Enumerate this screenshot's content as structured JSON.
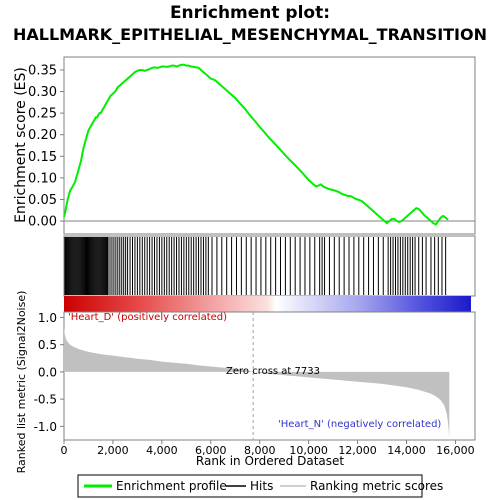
{
  "header": {
    "title_line1": "Enrichment plot:",
    "title_line2": "HALLMARK_EPITHELIAL_MESENCHYMAL_TRANSITION"
  },
  "colors": {
    "enrichment_line": "#00ee00",
    "hits": "#000000",
    "metric_fill": "#c0c0c0",
    "positive_label": "#cc0000",
    "negative_label": "#3333cc",
    "frame": "#808080",
    "zero_line": "#808080"
  },
  "chart_data": [
    {
      "type": "line",
      "ylabel": "Enrichment score (ES)",
      "xlim": [
        0,
        16800
      ],
      "ylim": [
        -0.03,
        0.38
      ],
      "yticks": [
        0.0,
        0.05,
        0.1,
        0.15,
        0.2,
        0.25,
        0.3,
        0.35
      ],
      "ytick_labels": [
        "0.00",
        "0.05",
        "0.10",
        "0.15",
        "0.20",
        "0.25",
        "0.30",
        "0.35"
      ],
      "series": [
        {
          "name": "Enrichment profile",
          "x": [
            0,
            50,
            100,
            150,
            200,
            250,
            300,
            350,
            400,
            450,
            500,
            550,
            600,
            650,
            700,
            750,
            800,
            850,
            900,
            950,
            1000,
            1050,
            1100,
            1150,
            1200,
            1250,
            1300,
            1350,
            1400,
            1450,
            1500,
            1550,
            1600,
            1650,
            1700,
            1750,
            1800,
            1900,
            2000,
            2100,
            2200,
            2300,
            2400,
            2500,
            2600,
            2700,
            2800,
            2900,
            3000,
            3100,
            3200,
            3300,
            3400,
            3500,
            3600,
            3700,
            3800,
            3900,
            4000,
            4100,
            4200,
            4300,
            4400,
            4500,
            4600,
            4700,
            4800,
            4900,
            5000,
            5100,
            5200,
            5300,
            5400,
            5500,
            5600,
            5700,
            5800,
            5900,
            6000,
            6100,
            6200,
            6300,
            6400,
            6500,
            6600,
            6800,
            7000,
            7200,
            7400,
            7600,
            7800,
            8000,
            8200,
            8400,
            8600,
            8800,
            9000,
            9200,
            9400,
            9600,
            9800,
            10000,
            10100,
            10200,
            10300,
            10400,
            10500,
            10600,
            10700,
            10800,
            10900,
            11000,
            11100,
            11200,
            11300,
            11400,
            11500,
            11600,
            11700,
            11800,
            11900,
            12000,
            12100,
            12200,
            12300,
            12400,
            12500,
            12600,
            12700,
            12800,
            12900,
            13000,
            13100,
            13200,
            13300,
            13400,
            13500,
            13600,
            13700,
            13800,
            13900,
            14000,
            14100,
            14200,
            14300,
            14400,
            14500,
            14600,
            14700,
            14800,
            14900,
            15000,
            15100,
            15200,
            15300,
            15400,
            15500,
            15600,
            15700
          ],
          "y": [
            0.01,
            0.02,
            0.035,
            0.05,
            0.06,
            0.07,
            0.075,
            0.08,
            0.085,
            0.09,
            0.1,
            0.11,
            0.12,
            0.13,
            0.14,
            0.155,
            0.17,
            0.18,
            0.19,
            0.2,
            0.21,
            0.215,
            0.22,
            0.225,
            0.23,
            0.235,
            0.24,
            0.24,
            0.245,
            0.25,
            0.25,
            0.255,
            0.26,
            0.265,
            0.27,
            0.275,
            0.28,
            0.29,
            0.295,
            0.3,
            0.31,
            0.315,
            0.32,
            0.325,
            0.33,
            0.335,
            0.34,
            0.345,
            0.348,
            0.35,
            0.35,
            0.348,
            0.35,
            0.352,
            0.355,
            0.356,
            0.355,
            0.356,
            0.358,
            0.358,
            0.357,
            0.358,
            0.36,
            0.36,
            0.358,
            0.36,
            0.362,
            0.362,
            0.36,
            0.36,
            0.358,
            0.357,
            0.356,
            0.355,
            0.35,
            0.345,
            0.34,
            0.335,
            0.33,
            0.328,
            0.325,
            0.32,
            0.315,
            0.31,
            0.305,
            0.295,
            0.285,
            0.272,
            0.26,
            0.245,
            0.232,
            0.218,
            0.205,
            0.192,
            0.18,
            0.168,
            0.155,
            0.143,
            0.132,
            0.12,
            0.108,
            0.095,
            0.09,
            0.085,
            0.08,
            0.082,
            0.085,
            0.08,
            0.077,
            0.075,
            0.073,
            0.072,
            0.07,
            0.068,
            0.065,
            0.062,
            0.06,
            0.058,
            0.058,
            0.055,
            0.052,
            0.05,
            0.048,
            0.045,
            0.04,
            0.035,
            0.03,
            0.025,
            0.02,
            0.015,
            0.01,
            0.005,
            0.0,
            -0.005,
            0.0,
            0.005,
            0.005,
            0.0,
            -0.002,
            0.0,
            0.005,
            0.01,
            0.015,
            0.02,
            0.025,
            0.03,
            0.028,
            0.022,
            0.015,
            0.01,
            0.005,
            0.0,
            -0.005,
            -0.008,
            0.0,
            0.008,
            0.012,
            0.008,
            0.003
          ]
        }
      ]
    },
    {
      "type": "bar",
      "series": [
        {
          "name": "Hits",
          "x": [
            40,
            80,
            120,
            160,
            200,
            240,
            280,
            320,
            360,
            400,
            440,
            480,
            520,
            560,
            600,
            640,
            680,
            720,
            760,
            800,
            840,
            880,
            920,
            960,
            1000,
            1040,
            1080,
            1120,
            1160,
            1200,
            1240,
            1280,
            1320,
            1360,
            1400,
            1440,
            1480,
            1520,
            1560,
            1600,
            1640,
            1680,
            1720,
            1760,
            1800,
            1880,
            1960,
            2040,
            2120,
            2200,
            2280,
            2360,
            2440,
            2520,
            2600,
            2700,
            2800,
            2900,
            3000,
            3100,
            3200,
            3300,
            3400,
            3500,
            3600,
            3700,
            3800,
            3900,
            4000,
            4100,
            4200,
            4300,
            4400,
            4500,
            4600,
            4700,
            4800,
            4900,
            5000,
            5100,
            5200,
            5300,
            5400,
            5500,
            5600,
            5700,
            5800,
            5900,
            6050,
            6250,
            6450,
            6650,
            6850,
            7050,
            7250,
            7450,
            7650,
            7850,
            8050,
            8250,
            8450,
            8650,
            8850,
            9050,
            9250,
            9450,
            9650,
            9850,
            10050,
            10250,
            10450,
            10550,
            10650,
            10850,
            11050,
            11250,
            11450,
            11650,
            11850,
            12050,
            12250,
            12450,
            12650,
            12850,
            13050,
            13250,
            13350,
            13450,
            13550,
            13650,
            13750,
            13850,
            13950,
            14050,
            14150,
            14250,
            14350,
            14500,
            14650,
            14800,
            15000,
            15150,
            15300,
            15450,
            15600
          ]
        }
      ]
    },
    {
      "type": "area",
      "ylabel": "Ranked list metric (Signal2Noise)",
      "xlabel": "Rank in Ordered Dataset",
      "xlim": [
        0,
        16800
      ],
      "ylim": [
        -1.25,
        1.1
      ],
      "yticks": [
        -1.0,
        -0.5,
        0.0,
        0.5,
        1.0
      ],
      "ytick_labels": [
        "-1.0",
        "-0.5",
        "0.0",
        "0.5",
        "1.0"
      ],
      "xticks": [
        0,
        2000,
        4000,
        6000,
        8000,
        10000,
        12000,
        14000,
        16000
      ],
      "xtick_labels": [
        "0",
        "2,000",
        "4,000",
        "6,000",
        "8,000",
        "10,000",
        "12,000",
        "14,000",
        "16,000"
      ],
      "zero_cross": 7733,
      "zero_cross_label": "Zero cross at 7733",
      "positive_label": "'Heart_D' (positively correlated)",
      "negative_label": "'Heart_N' (negatively correlated)",
      "series": [
        {
          "name": "Ranking metric scores",
          "x": [
            0,
            30,
            80,
            150,
            250,
            400,
            600,
            900,
            1200,
            1600,
            2000,
            2500,
            3000,
            3500,
            4000,
            4500,
            5000,
            5500,
            6000,
            6500,
            7000,
            7500,
            7733,
            8000,
            8500,
            9000,
            9500,
            10000,
            10500,
            11000,
            11500,
            12000,
            12500,
            13000,
            13500,
            14000,
            14500,
            14800,
            15000,
            15200,
            15400,
            15550,
            15650,
            15700,
            15750
          ],
          "y": [
            0.82,
            0.7,
            0.6,
            0.55,
            0.5,
            0.46,
            0.42,
            0.38,
            0.35,
            0.32,
            0.3,
            0.27,
            0.24,
            0.22,
            0.19,
            0.17,
            0.15,
            0.12,
            0.1,
            0.08,
            0.06,
            0.03,
            0.0,
            -0.02,
            -0.04,
            -0.06,
            -0.08,
            -0.1,
            -0.12,
            -0.14,
            -0.16,
            -0.18,
            -0.2,
            -0.22,
            -0.25,
            -0.28,
            -0.33,
            -0.37,
            -0.4,
            -0.45,
            -0.52,
            -0.62,
            -0.78,
            -0.95,
            -1.2
          ]
        }
      ]
    }
  ],
  "legend": {
    "items": [
      {
        "label": "Enrichment profile"
      },
      {
        "label": "Hits"
      },
      {
        "label": "Ranking metric scores"
      }
    ]
  }
}
